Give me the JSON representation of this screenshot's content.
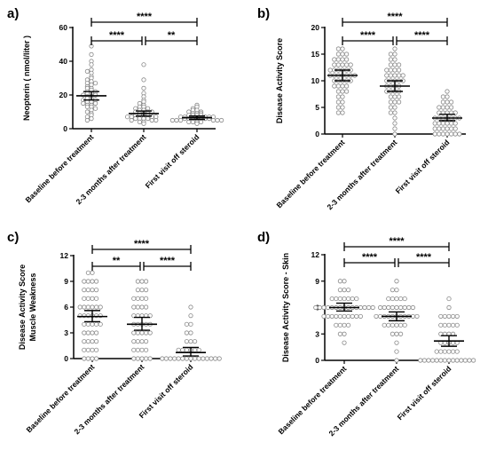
{
  "chart_data": [
    {
      "type": "scatter",
      "panel_label": "a)",
      "ylabel": "Neopterin ( nmol/liter )",
      "ylabel2": "",
      "ylim": [
        0,
        60
      ],
      "yticks": [
        0,
        20,
        40,
        60
      ],
      "categories": [
        "Baseline before treatment",
        "2-3 months after treatment",
        "First visit off steroid"
      ],
      "groups": [
        {
          "mean": 19.5,
          "ci": [
            17,
            22
          ],
          "values": [
            49,
            44,
            40,
            38,
            35,
            34,
            33,
            31,
            30,
            29,
            28,
            27,
            27,
            26,
            25,
            24,
            24,
            23,
            22,
            22,
            21,
            21,
            20,
            20,
            19,
            19,
            18,
            18,
            17,
            17,
            16,
            16,
            15,
            15,
            14,
            14,
            13,
            13,
            12,
            11,
            10,
            9,
            8,
            7,
            6,
            5
          ]
        },
        {
          "mean": 9,
          "ci": [
            7.5,
            10.5
          ],
          "values": [
            38,
            29,
            24,
            21,
            19,
            17,
            16,
            15,
            14,
            13,
            13,
            12,
            12,
            11,
            11,
            10,
            10,
            10,
            9,
            9,
            9,
            8,
            8,
            8,
            8,
            7,
            7,
            7,
            7,
            6,
            6,
            6,
            6,
            5,
            5,
            5,
            4,
            4,
            3
          ]
        },
        {
          "mean": 6.5,
          "ci": [
            5.5,
            7.5
          ],
          "values": [
            14,
            13,
            12,
            11,
            11,
            10,
            10,
            9,
            9,
            9,
            8,
            8,
            8,
            8,
            7,
            7,
            7,
            7,
            7,
            6,
            6,
            6,
            6,
            6,
            6,
            6,
            5,
            5,
            5,
            5,
            5,
            5,
            4,
            4,
            4,
            4,
            3
          ]
        }
      ],
      "significance": [
        {
          "from": 0,
          "to": 2,
          "label": "****",
          "level": 2
        },
        {
          "from": 0,
          "to": 1,
          "label": "****",
          "level": 1
        },
        {
          "from": 1,
          "to": 2,
          "label": "**",
          "level": 1
        }
      ]
    },
    {
      "type": "scatter",
      "panel_label": "b)",
      "ylabel": "Disease Activity Score",
      "ylabel2": "",
      "ylim": [
        0,
        20
      ],
      "yticks": [
        0,
        5,
        10,
        15,
        20
      ],
      "categories": [
        "Baseline before treatment",
        "2-3 months after treatment",
        "First visit off steroid"
      ],
      "groups": [
        {
          "mean": 11,
          "ci": [
            10,
            12
          ],
          "values": [
            16,
            16,
            15,
            15,
            15,
            14,
            14,
            14,
            14,
            13,
            13,
            13,
            13,
            13,
            12,
            12,
            12,
            12,
            12,
            12,
            11,
            11,
            11,
            11,
            11,
            11,
            11,
            10,
            10,
            10,
            10,
            10,
            9,
            9,
            9,
            9,
            8,
            8,
            8,
            7,
            7,
            6,
            6,
            5,
            5,
            4,
            4
          ]
        },
        {
          "mean": 9,
          "ci": [
            8,
            10
          ],
          "values": [
            16,
            15,
            15,
            14,
            14,
            13,
            13,
            13,
            12,
            12,
            12,
            12,
            11,
            11,
            11,
            11,
            11,
            10,
            10,
            10,
            10,
            10,
            9,
            9,
            9,
            9,
            8,
            8,
            8,
            8,
            7,
            7,
            7,
            6,
            6,
            6,
            5,
            5,
            4,
            4,
            3,
            2,
            1,
            0
          ]
        },
        {
          "mean": 3,
          "ci": [
            2.5,
            3.7
          ],
          "values": [
            8,
            7,
            7,
            6,
            6,
            6,
            5,
            5,
            5,
            5,
            4,
            4,
            4,
            4,
            4,
            3,
            3,
            3,
            3,
            3,
            3,
            3,
            2,
            2,
            2,
            2,
            2,
            2,
            1,
            1,
            1,
            1,
            1,
            1,
            0,
            0,
            0,
            0,
            0,
            0,
            0
          ]
        }
      ],
      "significance": [
        {
          "from": 0,
          "to": 2,
          "label": "****",
          "level": 2
        },
        {
          "from": 0,
          "to": 1,
          "label": "****",
          "level": 1
        },
        {
          "from": 1,
          "to": 2,
          "label": "****",
          "level": 1
        }
      ]
    },
    {
      "type": "scatter",
      "panel_label": "c)",
      "ylabel": "Disease Activity Score",
      "ylabel2": "Muscle Weakness",
      "ylim": [
        0,
        12
      ],
      "yticks": [
        0,
        3,
        6,
        9,
        12
      ],
      "categories": [
        "Baseline before treatment",
        "2-3 months after treatment",
        "First visit off steroid"
      ],
      "groups": [
        {
          "mean": 4.9,
          "ci": [
            4.3,
            5.6
          ],
          "values": [
            10,
            10,
            9,
            9,
            9,
            9,
            8,
            8,
            8,
            8,
            7,
            7,
            7,
            7,
            6,
            6,
            6,
            6,
            6,
            6,
            5,
            5,
            5,
            5,
            5,
            5,
            4,
            4,
            4,
            4,
            4,
            3,
            3,
            3,
            3,
            2,
            2,
            2,
            2,
            1,
            1,
            1,
            1,
            0,
            0,
            0,
            0
          ]
        },
        {
          "mean": 4,
          "ci": [
            3.3,
            4.8
          ],
          "values": [
            9,
            9,
            9,
            8,
            8,
            8,
            7,
            7,
            7,
            7,
            6,
            6,
            6,
            6,
            5,
            5,
            5,
            5,
            5,
            4,
            4,
            4,
            4,
            4,
            3,
            3,
            3,
            3,
            3,
            2,
            2,
            2,
            2,
            1,
            1,
            1,
            1,
            0,
            0,
            0,
            0,
            0
          ]
        },
        {
          "mean": 0.7,
          "ci": [
            0.3,
            1.3
          ],
          "values": [
            6,
            5,
            4,
            4,
            3,
            3,
            2,
            2,
            2,
            1,
            1,
            1,
            1,
            1,
            1,
            0,
            0,
            0,
            0,
            0,
            0,
            0,
            0,
            0,
            0,
            0,
            0,
            0,
            0,
            0
          ]
        }
      ],
      "significance": [
        {
          "from": 0,
          "to": 2,
          "label": "****",
          "level": 2
        },
        {
          "from": 0,
          "to": 1,
          "label": "**",
          "level": 1
        },
        {
          "from": 1,
          "to": 2,
          "label": "****",
          "level": 1
        }
      ]
    },
    {
      "type": "scatter",
      "panel_label": "d)",
      "ylabel": "Disease Activity Score - Skin",
      "ylabel2": "",
      "ylim": [
        0,
        12
      ],
      "yticks": [
        0,
        3,
        6,
        9,
        12
      ],
      "categories": [
        "Baseline before treatment",
        "2-3 months after treatment",
        "First visit off steroid"
      ],
      "groups": [
        {
          "mean": 6,
          "ci": [
            5.6,
            6.5
          ],
          "values": [
            9,
            9,
            8,
            8,
            8,
            7,
            7,
            7,
            7,
            7,
            7,
            7,
            6,
            6,
            6,
            6,
            6,
            6,
            6,
            6,
            6,
            6,
            6,
            6,
            6,
            6,
            6,
            5,
            5,
            5,
            5,
            5,
            5,
            5,
            5,
            5,
            5,
            4,
            4,
            4,
            4,
            3,
            3,
            2
          ]
        },
        {
          "mean": 5,
          "ci": [
            4.5,
            5.5
          ],
          "values": [
            9,
            8,
            8,
            7,
            7,
            7,
            7,
            7,
            6,
            6,
            6,
            6,
            6,
            6,
            6,
            6,
            6,
            5,
            5,
            5,
            5,
            5,
            5,
            5,
            5,
            5,
            5,
            5,
            4,
            4,
            4,
            4,
            4,
            4,
            3,
            3,
            3,
            2,
            1,
            0
          ]
        },
        {
          "mean": 2.2,
          "ci": [
            1.6,
            2.8
          ],
          "values": [
            7,
            6,
            5,
            5,
            5,
            5,
            5,
            4,
            4,
            4,
            4,
            4,
            3,
            3,
            3,
            3,
            2,
            2,
            2,
            2,
            2,
            1,
            1,
            1,
            1,
            1,
            1,
            0,
            0,
            0,
            0,
            0,
            0,
            0,
            0,
            0,
            0,
            0,
            0,
            0,
            0
          ]
        }
      ],
      "significance": [
        {
          "from": 0,
          "to": 2,
          "label": "****",
          "level": 2
        },
        {
          "from": 0,
          "to": 1,
          "label": "****",
          "level": 1
        },
        {
          "from": 1,
          "to": 2,
          "label": "****",
          "level": 1
        }
      ]
    }
  ]
}
